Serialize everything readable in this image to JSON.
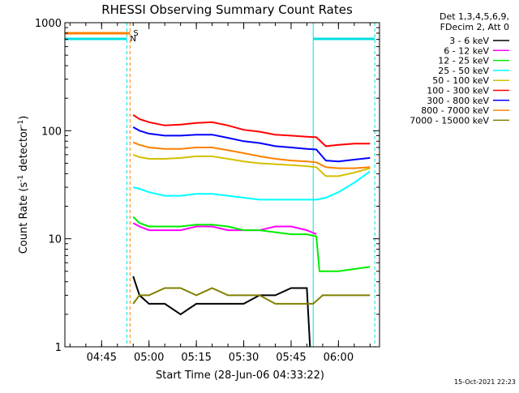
{
  "chart_data": {
    "type": "line",
    "title": "RHESSI Observing Summary Count Rates",
    "xlabel": "Start Time (28-Jun-06 04:33:22)",
    "ylabel": "Count Rate (s⁻¹ detector⁻¹)",
    "ylabel_main": "Count Rate (s",
    "ylabel_sup1": "-1",
    "ylabel_mid": " detector",
    "ylabel_sup2": "-1",
    "ylabel_end": ")",
    "yscale": "log",
    "ylim": [
      1,
      1000
    ],
    "xlim": [
      "04:33:22",
      "06:13:00"
    ],
    "x_ticks": [
      "04:45",
      "05:00",
      "05:15",
      "05:30",
      "05:45",
      "06:00"
    ],
    "y_ticks": [
      "1",
      "10",
      "100",
      "1000"
    ],
    "legend_header": [
      "Det 1,3,4,5,6,9,",
      "FDecim 2, Att 0"
    ],
    "timestamp": "15-Oct-2021 22:23",
    "flag_labels": {
      "saa": "S",
      "night": "N"
    },
    "flag_colors": {
      "saa": "#ff8000",
      "night": "#00e0e0"
    },
    "night_intervals": [
      [
        "04:33:22",
        "04:53:00"
      ],
      [
        "05:52:00",
        "06:11:30"
      ]
    ],
    "saa_intervals": [
      [
        "04:33:22",
        "04:54:00"
      ]
    ],
    "series": [
      {
        "name": "3 - 6 keV",
        "color": "#000000",
        "x": [
          "04:55",
          "04:57",
          "05:00",
          "05:05",
          "05:10",
          "05:15",
          "05:20",
          "05:25",
          "05:30",
          "05:35",
          "05:40",
          "05:45",
          "05:50",
          "05:51"
        ],
        "values": [
          4.5,
          3,
          2.5,
          2.5,
          2,
          2.5,
          2.5,
          2.5,
          2.5,
          3,
          3,
          3.5,
          3.5,
          1
        ]
      },
      {
        "name": "6 - 12 keV",
        "color": "#ff00ff",
        "x": [
          "04:55",
          "04:57",
          "05:00",
          "05:05",
          "05:10",
          "05:15",
          "05:20",
          "05:25",
          "05:30",
          "05:35",
          "05:40",
          "05:45",
          "05:50",
          "05:53"
        ],
        "values": [
          14,
          13,
          12,
          12,
          12,
          13,
          13,
          12,
          12,
          12,
          13,
          13,
          12,
          11
        ]
      },
      {
        "name": "12 - 25 keV",
        "color": "#00ee00",
        "x": [
          "04:55",
          "04:57",
          "05:00",
          "05:05",
          "05:10",
          "05:15",
          "05:20",
          "05:25",
          "05:30",
          "05:35",
          "05:40",
          "05:45",
          "05:50",
          "05:53",
          "05:54",
          "06:00",
          "06:10"
        ],
        "values": [
          16,
          14,
          13,
          13,
          13,
          13.5,
          13.5,
          13,
          12,
          12,
          11.5,
          11,
          11,
          10.5,
          5,
          5,
          5.5
        ]
      },
      {
        "name": "25 - 50 keV",
        "color": "#00ffff",
        "x": [
          "04:55",
          "04:57",
          "05:00",
          "05:05",
          "05:10",
          "05:15",
          "05:20",
          "05:25",
          "05:30",
          "05:35",
          "05:40",
          "05:45",
          "05:50",
          "05:53",
          "05:56",
          "06:00",
          "06:05",
          "06:10"
        ],
        "values": [
          30,
          29,
          27,
          25,
          25,
          26,
          26,
          25,
          24,
          23,
          23,
          23,
          23,
          23,
          24,
          27,
          33,
          42
        ]
      },
      {
        "name": "50 - 100 keV",
        "color": "#d4c000",
        "x": [
          "04:55",
          "04:57",
          "05:00",
          "05:05",
          "05:10",
          "05:15",
          "05:20",
          "05:25",
          "05:30",
          "05:35",
          "05:40",
          "05:45",
          "05:50",
          "05:53",
          "05:56",
          "06:00",
          "06:05",
          "06:10"
        ],
        "values": [
          60,
          57,
          55,
          55,
          56,
          58,
          58,
          55,
          52,
          50,
          49,
          48,
          47,
          46,
          38,
          38,
          41,
          45
        ]
      },
      {
        "name": "100 - 300 keV",
        "color": "#ff0000",
        "x": [
          "04:55",
          "04:57",
          "05:00",
          "05:05",
          "05:10",
          "05:15",
          "05:20",
          "05:25",
          "05:30",
          "05:35",
          "05:40",
          "05:45",
          "05:50",
          "05:53",
          "05:56",
          "06:00",
          "06:05",
          "06:10"
        ],
        "values": [
          140,
          128,
          120,
          112,
          114,
          118,
          120,
          112,
          102,
          98,
          92,
          90,
          88,
          87,
          72,
          74,
          76,
          76
        ]
      },
      {
        "name": "300 - 800 keV",
        "color": "#0000ff",
        "x": [
          "04:55",
          "04:57",
          "05:00",
          "05:05",
          "05:10",
          "05:15",
          "05:20",
          "05:25",
          "05:30",
          "05:35",
          "05:40",
          "05:45",
          "05:50",
          "05:53",
          "05:56",
          "06:00",
          "06:05",
          "06:10"
        ],
        "values": [
          108,
          100,
          94,
          90,
          90,
          92,
          92,
          86,
          80,
          77,
          72,
          70,
          68,
          67,
          53,
          52,
          54,
          56
        ]
      },
      {
        "name": "800 - 7000 keV",
        "color": "#ff8000",
        "x": [
          "04:55",
          "04:57",
          "05:00",
          "05:05",
          "05:10",
          "05:15",
          "05:20",
          "05:25",
          "05:30",
          "05:35",
          "05:40",
          "05:45",
          "05:50",
          "05:53",
          "05:56",
          "06:00",
          "06:05",
          "06:10"
        ],
        "values": [
          78,
          74,
          70,
          68,
          68,
          70,
          70,
          66,
          62,
          58,
          55,
          53,
          52,
          51,
          46,
          45,
          45,
          46
        ]
      },
      {
        "name": "7000 - 15000 keV",
        "color": "#808000",
        "x": [
          "04:55",
          "04:57",
          "05:00",
          "05:05",
          "05:10",
          "05:15",
          "05:20",
          "05:25",
          "05:30",
          "05:35",
          "05:40",
          "05:45",
          "05:50",
          "05:52",
          "05:55",
          "06:00",
          "06:05",
          "06:10"
        ],
        "values": [
          2.5,
          3,
          3,
          3.5,
          3.5,
          3,
          3.5,
          3,
          3,
          3,
          2.5,
          2.5,
          2.5,
          2.5,
          3,
          3,
          3,
          3
        ]
      }
    ]
  }
}
